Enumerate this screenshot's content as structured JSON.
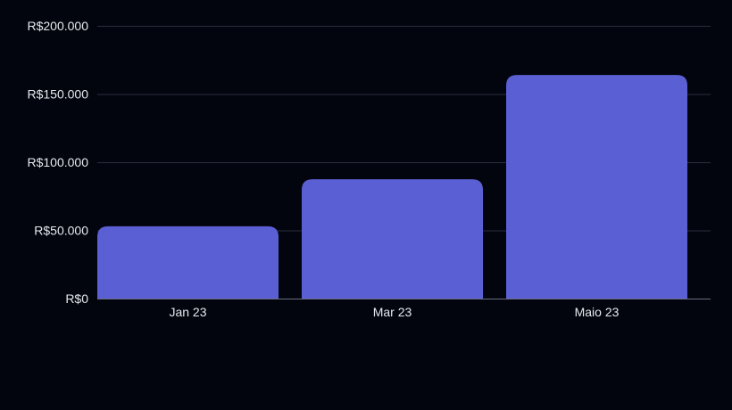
{
  "chart_data": {
    "type": "bar",
    "categories": [
      "Jan 23",
      "Mar 23",
      "Maio 23"
    ],
    "values": [
      53000,
      87500,
      164000
    ],
    "ylim": [
      0,
      200000
    ],
    "yticks": [
      {
        "value": 0,
        "label": "R$0"
      },
      {
        "value": 50000,
        "label": "R$50.000"
      },
      {
        "value": 100000,
        "label": "R$100.000"
      },
      {
        "value": 150000,
        "label": "R$150.000"
      },
      {
        "value": 200000,
        "label": "R$200.000"
      }
    ],
    "grid": true,
    "legend": "none",
    "colors": {
      "bar": "#5b5fd4",
      "background": "#03050e",
      "grid": "#2a2d3d",
      "axis": "#6a6d80",
      "text": "#e6e8ee"
    }
  }
}
